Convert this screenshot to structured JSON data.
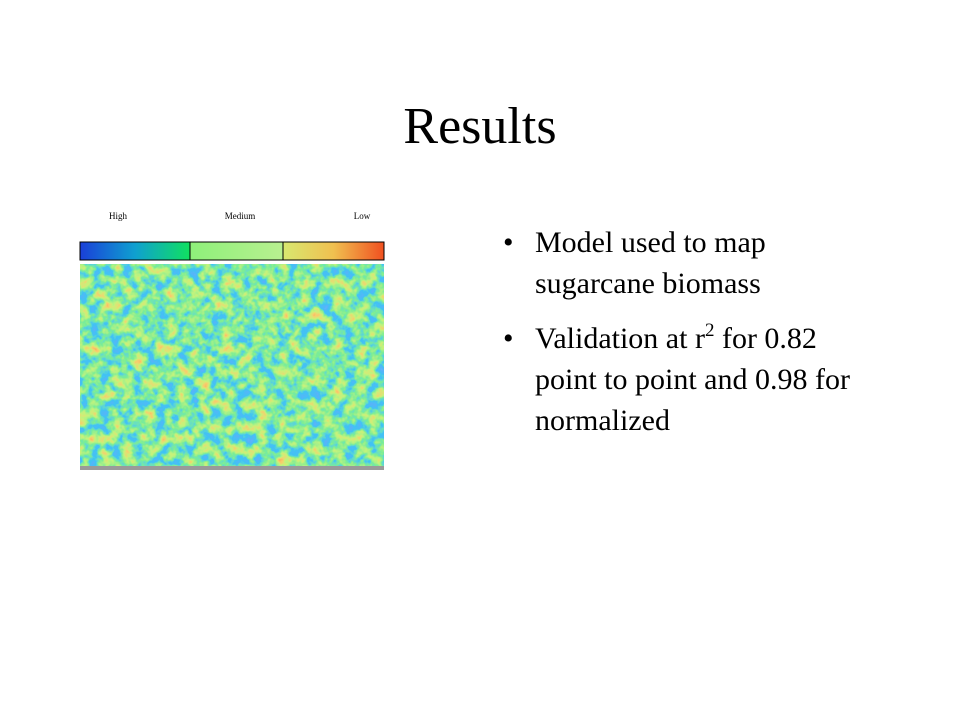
{
  "slide": {
    "title": "Results",
    "legend": {
      "labels": [
        "High",
        "Medium",
        "Low"
      ]
    },
    "bullets": [
      {
        "text": "Model used to map sugarcane biomass"
      },
      {
        "text_before": "Validation at r",
        "superscript": "2",
        "text_after": " for 0.82 point to point and 0.98 for normalized"
      }
    ]
  }
}
